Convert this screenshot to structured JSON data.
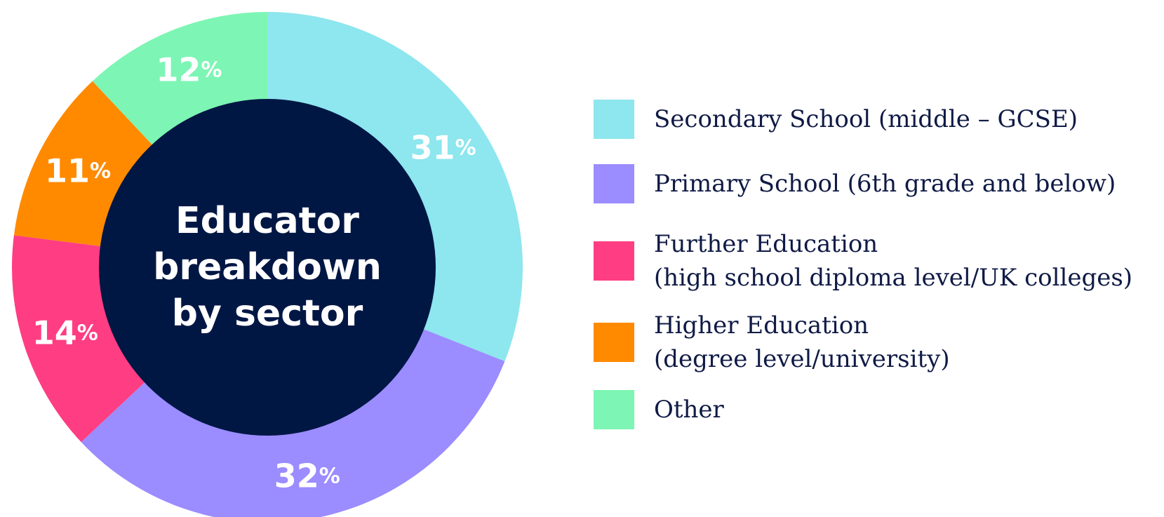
{
  "chart_data": {
    "type": "pie",
    "title": "Educator breakdown by sector",
    "title_lines": [
      "Educator",
      "breakdown",
      "by sector"
    ],
    "legend_placement": "right",
    "slices": [
      {
        "name": "Secondary School (middle – GCSE)",
        "name_lines": [
          "Secondary School (middle – GCSE)"
        ],
        "value": 31,
        "label": "31",
        "color": "#8ee6ee"
      },
      {
        "name": "Primary School (6th grade and below)",
        "name_lines": [
          "Primary School (6th grade and below)"
        ],
        "value": 32,
        "label": "32",
        "color": "#9b8cff"
      },
      {
        "name": "Further Education (high school diploma level/UK colleges)",
        "name_lines": [
          "Further Education",
          "(high school diploma level/UK colleges)"
        ],
        "value": 14,
        "label": "14",
        "color": "#ff3d82"
      },
      {
        "name": "Higher Education (degree level/university)",
        "name_lines": [
          "Higher Education",
          "(degree level/university)"
        ],
        "value": 11,
        "label": "11",
        "color": "#ff8a00"
      },
      {
        "name": "Other",
        "name_lines": [
          "Other"
        ],
        "value": 12,
        "label": "12",
        "color": "#7df5b4"
      }
    ],
    "percent_symbol": "%",
    "center_color": "#001744"
  }
}
